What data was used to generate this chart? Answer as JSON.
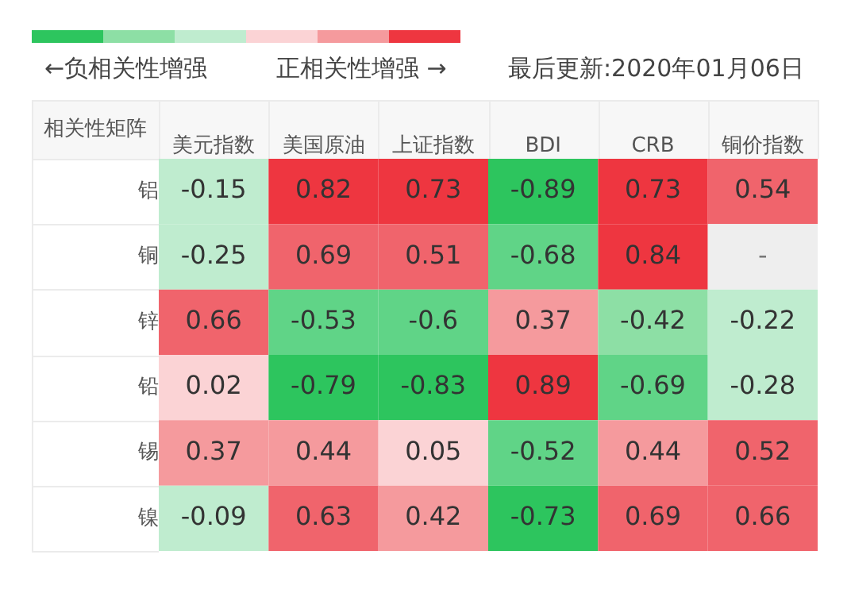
{
  "chart_data": {
    "type": "heatmap",
    "annotations": [
      "←负相关性增强",
      "正相关性增强 →",
      "最后更新:2020年01月06日",
      "相关性矩阵"
    ],
    "categories": [
      "美元指数",
      "美国原油",
      "上证指数",
      "BDI",
      "CRB",
      "铜价指数"
    ],
    "y_categories": [
      "铝",
      "铜",
      "锌",
      "铅",
      "锡",
      "镍"
    ],
    "cells": [
      [
        -0.15,
        0.82,
        0.73,
        -0.89,
        0.73,
        0.54
      ],
      [
        -0.25,
        0.69,
        0.51,
        -0.68,
        0.84,
        null
      ],
      [
        0.66,
        -0.53,
        -0.6,
        0.37,
        -0.42,
        -0.22
      ],
      [
        0.02,
        -0.79,
        -0.83,
        0.89,
        -0.69,
        -0.28
      ],
      [
        0.37,
        0.44,
        0.05,
        -0.52,
        0.44,
        0.52
      ],
      [
        -0.09,
        0.63,
        0.42,
        -0.73,
        0.69,
        0.66
      ]
    ],
    "cell_labels": [
      [
        "-0.15",
        "0.82",
        "0.73",
        "-0.89",
        "0.73",
        "0.54"
      ],
      [
        "-0.25",
        "0.69",
        "0.51",
        "-0.68",
        "0.84",
        "-"
      ],
      [
        "0.66",
        "-0.53",
        "-0.6",
        "0.37",
        "-0.42",
        "-0.22"
      ],
      [
        "0.02",
        "-0.79",
        "-0.83",
        "0.89",
        "-0.69",
        "-0.28"
      ],
      [
        "0.37",
        "0.44",
        "0.05",
        "-0.52",
        "0.44",
        "0.52"
      ],
      [
        "-0.09",
        "0.63",
        "0.42",
        "-0.73",
        "0.69",
        "0.66"
      ]
    ]
  }
}
